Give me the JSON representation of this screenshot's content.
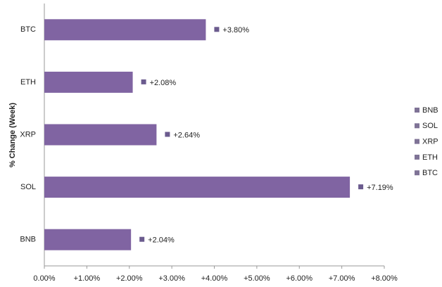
{
  "chart_data": {
    "type": "bar",
    "orientation": "horizontal",
    "y_label": "% Change (Week)",
    "categories": [
      "BTC",
      "ETH",
      "XRP",
      "SOL",
      "BNB"
    ],
    "values": [
      3.8,
      2.08,
      2.64,
      7.19,
      2.04
    ],
    "value_labels": [
      "+3.80%",
      "+2.08%",
      "+2.64%",
      "+7.19%",
      "+2.04%"
    ],
    "color": "#8064a2",
    "xlim": [
      0,
      8
    ],
    "xticks": [
      {
        "value": 0,
        "label": "0.00%"
      },
      {
        "value": 1,
        "label": "+1.00%"
      },
      {
        "value": 2,
        "label": "+2.00%"
      },
      {
        "value": 3,
        "label": "+3.00%"
      },
      {
        "value": 4,
        "label": "+4.00%"
      },
      {
        "value": 5,
        "label": "+5.00%"
      },
      {
        "value": 6,
        "label": "+6.00%"
      },
      {
        "value": 7,
        "label": "+7.00%"
      },
      {
        "value": 8,
        "label": "+8.00%"
      }
    ],
    "grid": false,
    "legend": "right"
  }
}
